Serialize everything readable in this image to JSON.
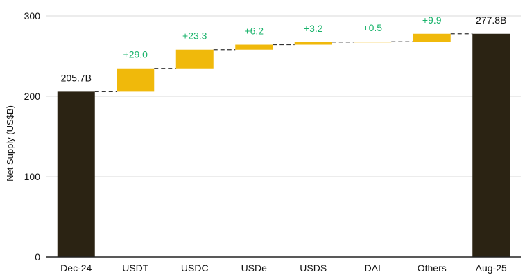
{
  "chart_data": {
    "type": "bar",
    "subtype": "waterfall",
    "ylabel": "Net Supply (US$B)",
    "ylim": [
      0,
      300
    ],
    "yticks": [
      0,
      100,
      200,
      300
    ],
    "grid": true,
    "categories": [
      "Dec-24",
      "USDT",
      "USDC",
      "USDe",
      "USDS",
      "DAI",
      "Others",
      "Aug-25"
    ],
    "values": [
      205.7,
      29.0,
      23.3,
      6.2,
      3.2,
      0.5,
      9.9,
      277.8
    ],
    "kinds": [
      "total",
      "delta",
      "delta",
      "delta",
      "delta",
      "delta",
      "delta",
      "total"
    ],
    "labels": [
      "205.7B",
      "+29.0",
      "+23.3",
      "+6.2",
      "+3.2",
      "+0.5",
      "+9.9",
      "277.8B"
    ],
    "colors": {
      "total": "#2b2313",
      "delta": "#f0b90b",
      "positive_label": "#19b36b",
      "total_label": "#111111",
      "grid": "#d9d9d9",
      "axis": "#222222",
      "connector": "#333333"
    }
  }
}
